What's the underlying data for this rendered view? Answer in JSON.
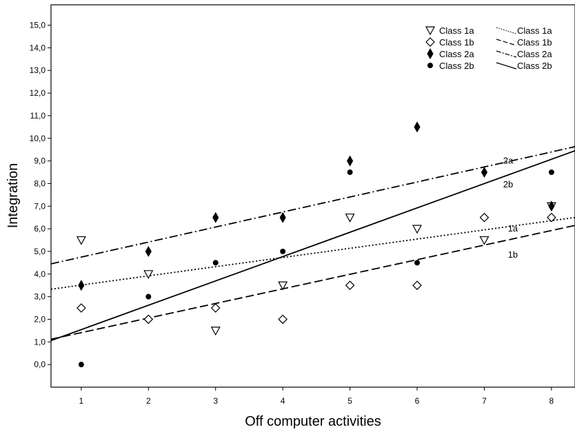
{
  "chart_data": {
    "type": "scatter",
    "title": "",
    "xlabel": "Off computer activities",
    "ylabel": "Integration",
    "x_ticks": [
      "1",
      "2",
      "3",
      "4",
      "5",
      "6",
      "7",
      "8"
    ],
    "y_ticks": [
      "0,0",
      "1,0",
      "2,0",
      "3,0",
      "4,0",
      "5,0",
      "6,0",
      "7,0",
      "8,0",
      "9,0",
      "10,0",
      "11,0",
      "12,0",
      "13,0",
      "14,0",
      "15,0"
    ],
    "xlim": [
      0.55,
      8.35
    ],
    "ylim": [
      -1.0,
      15.9
    ],
    "grid": false,
    "legend_position": "top-right",
    "series": [
      {
        "name": "Class 1a",
        "marker": "triangle-down-open",
        "x": [
          1,
          2,
          3,
          4,
          5,
          6,
          7,
          8
        ],
        "y": [
          5.5,
          4.0,
          1.5,
          3.5,
          6.5,
          6.0,
          5.5,
          7.0
        ]
      },
      {
        "name": "Class 1b",
        "marker": "diamond-open",
        "x": [
          1,
          2,
          3,
          4,
          5,
          6,
          7,
          8
        ],
        "y": [
          2.5,
          2.0,
          2.5,
          2.0,
          3.5,
          3.5,
          6.5,
          6.5
        ]
      },
      {
        "name": "Class 2a",
        "marker": "diamond-filled",
        "x": [
          1,
          2,
          3,
          4,
          5,
          6,
          7,
          8
        ],
        "y": [
          3.5,
          5.0,
          6.5,
          6.5,
          9.0,
          10.5,
          8.5,
          7.0
        ]
      },
      {
        "name": "Class 2b",
        "marker": "circle-filled",
        "x": [
          1,
          2,
          3,
          4,
          5,
          6,
          7,
          8
        ],
        "y": [
          0.0,
          3.0,
          4.5,
          5.0,
          8.5,
          4.5,
          8.5,
          8.5
        ]
      }
    ],
    "fit_lines": [
      {
        "name": "Class 1a",
        "label": "1a",
        "dash": "dotted",
        "x": [
          0.55,
          8.35
        ],
        "y": [
          3.33,
          6.5
        ]
      },
      {
        "name": "Class 1b",
        "label": "1b",
        "dash": "dashed",
        "x": [
          0.55,
          8.35
        ],
        "y": [
          1.12,
          6.15
        ]
      },
      {
        "name": "Class 2a",
        "label": "2a",
        "dash": "dash-dot",
        "x": [
          0.55,
          8.35
        ],
        "y": [
          4.45,
          9.63
        ]
      },
      {
        "name": "Class 2b",
        "label": "2b",
        "dash": "solid",
        "x": [
          0.55,
          8.35
        ],
        "y": [
          1.06,
          9.45
        ]
      }
    ]
  }
}
